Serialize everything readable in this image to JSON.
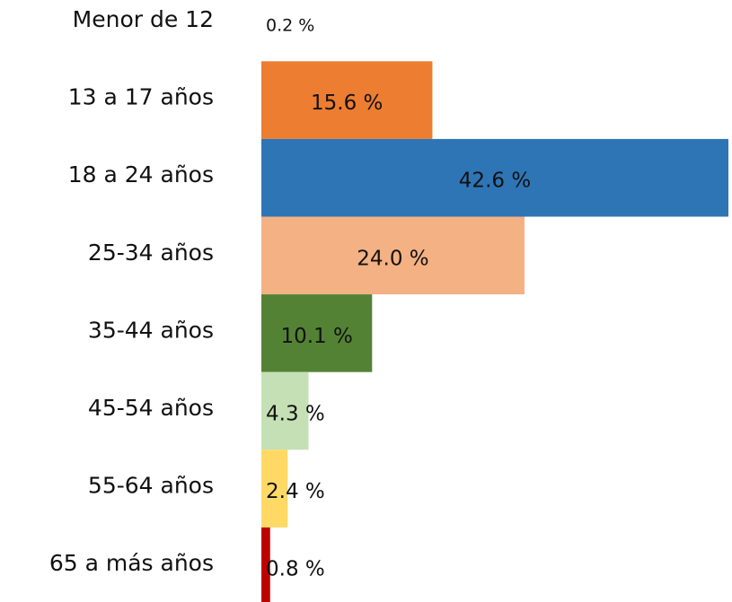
{
  "chart_data": {
    "type": "bar",
    "orientation": "horizontal",
    "categories": [
      "Menor de 12",
      "13 a 17 años",
      "18 a 24 años",
      "25-34 años",
      "35-44 años",
      "45-54 años",
      "55-64 años",
      "65 a más años"
    ],
    "values": [
      0.2,
      15.6,
      42.6,
      24.0,
      10.1,
      4.3,
      2.4,
      0.8
    ],
    "value_labels": [
      "0.2 %",
      "15.6 %",
      "42.6 %",
      "24.0 %",
      "10.1 %",
      "4.3 %",
      "2.4 %",
      "0.8 %"
    ],
    "colors": [
      "#ffffff",
      "#ed7d31",
      "#2e75b6",
      "#f4b183",
      "#548235",
      "#c5e0b4",
      "#ffd966",
      "#c00000"
    ]
  }
}
